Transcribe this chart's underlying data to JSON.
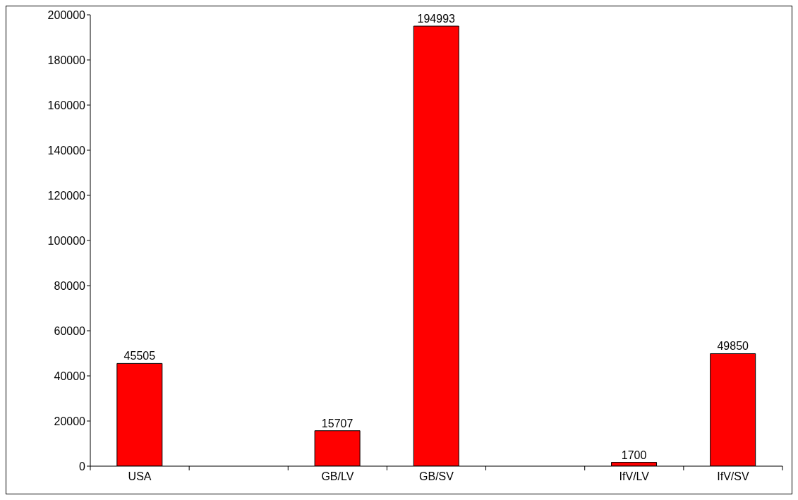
{
  "chart_data": {
    "type": "bar",
    "categories": [
      "USA",
      null,
      "GB/LV",
      "GB/SV",
      null,
      "IfV/LV",
      "IfV/SV"
    ],
    "values": [
      45505,
      null,
      15707,
      194993,
      null,
      1700,
      49850
    ],
    "color": "#ff0000",
    "ylim": [
      0,
      200000
    ],
    "yticks": [
      0,
      20000,
      40000,
      60000,
      80000,
      100000,
      120000,
      140000,
      160000,
      180000,
      200000
    ],
    "data_labels": true,
    "grid": false
  }
}
